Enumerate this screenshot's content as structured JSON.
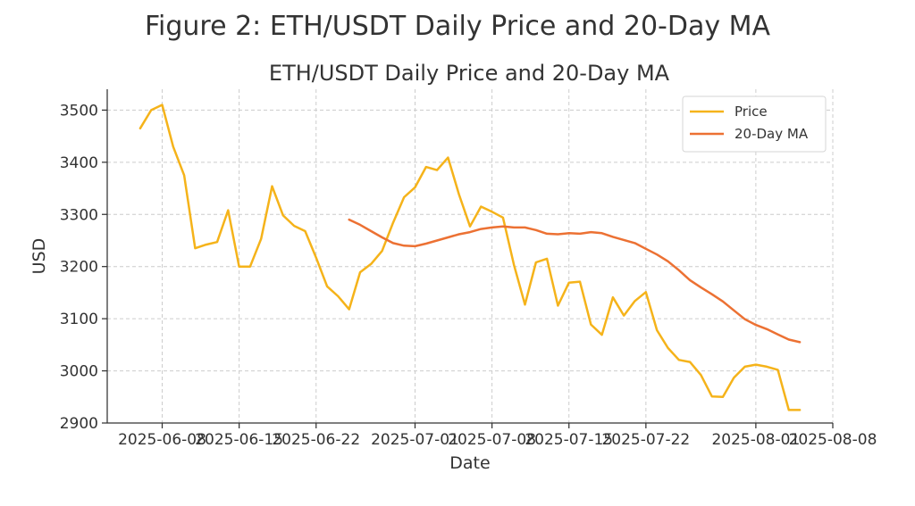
{
  "figure": {
    "suptitle": "Figure 2: ETH/USDT Daily Price and 20-Day MA"
  },
  "chart_data": {
    "type": "line",
    "title": "ETH/USDT Daily Price and 20-Day MA",
    "xlabel": "Date",
    "ylabel": "USD",
    "xlim": [
      "2025-06-03",
      "2025-08-08"
    ],
    "ylim": [
      2900,
      3540
    ],
    "grid": true,
    "legend_position": "top-right",
    "x_ticks": [
      "2025-06-08",
      "2025-06-15",
      "2025-06-22",
      "2025-07-01",
      "2025-07-08",
      "2025-07-15",
      "2025-07-22",
      "2025-08-01",
      "2025-08-08"
    ],
    "y_ticks": [
      2900,
      3000,
      3100,
      3200,
      3300,
      3400,
      3500
    ],
    "series": [
      {
        "name": "Price",
        "color": "#f5b31a",
        "x": [
          "2025-06-06",
          "2025-06-07",
          "2025-06-08",
          "2025-06-09",
          "2025-06-10",
          "2025-06-11",
          "2025-06-12",
          "2025-06-13",
          "2025-06-14",
          "2025-06-15",
          "2025-06-16",
          "2025-06-17",
          "2025-06-18",
          "2025-06-19",
          "2025-06-20",
          "2025-06-21",
          "2025-06-22",
          "2025-06-23",
          "2025-06-24",
          "2025-06-25",
          "2025-06-26",
          "2025-06-27",
          "2025-06-28",
          "2025-06-29",
          "2025-06-30",
          "2025-07-01",
          "2025-07-02",
          "2025-07-03",
          "2025-07-04",
          "2025-07-05",
          "2025-07-06",
          "2025-07-07",
          "2025-07-08",
          "2025-07-09",
          "2025-07-10",
          "2025-07-11",
          "2025-07-12",
          "2025-07-13",
          "2025-07-14",
          "2025-07-15",
          "2025-07-16",
          "2025-07-17",
          "2025-07-18",
          "2025-07-19",
          "2025-07-20",
          "2025-07-21",
          "2025-07-22",
          "2025-07-23",
          "2025-07-24",
          "2025-07-25",
          "2025-07-26",
          "2025-07-27",
          "2025-07-28",
          "2025-07-29",
          "2025-07-30",
          "2025-07-31",
          "2025-08-01",
          "2025-08-02",
          "2025-08-03",
          "2025-08-04",
          "2025-08-05"
        ],
        "values": [
          3465,
          3500,
          3510,
          3430,
          3375,
          3235,
          3242,
          3247,
          3308,
          3200,
          3200,
          3253,
          3354,
          3298,
          3278,
          3268,
          3217,
          3162,
          3143,
          3118,
          3189,
          3205,
          3230,
          3284,
          3333,
          3352,
          3391,
          3385,
          3409,
          3338,
          3277,
          3315,
          3305,
          3294,
          3203,
          3127,
          3208,
          3215,
          3125,
          3169,
          3171,
          3089,
          3069,
          3141,
          3106,
          3134,
          3151,
          3078,
          3044,
          3021,
          3017,
          2992,
          2951,
          2950,
          2987,
          3008,
          3012,
          3008,
          3002,
          2925,
          2925
        ]
      },
      {
        "name": "20-Day MA",
        "color": "#ec7133",
        "x": [
          "2025-06-25",
          "2025-06-26",
          "2025-06-27",
          "2025-06-28",
          "2025-06-29",
          "2025-06-30",
          "2025-07-01",
          "2025-07-02",
          "2025-07-03",
          "2025-07-04",
          "2025-07-05",
          "2025-07-06",
          "2025-07-07",
          "2025-07-08",
          "2025-07-09",
          "2025-07-10",
          "2025-07-11",
          "2025-07-12",
          "2025-07-13",
          "2025-07-14",
          "2025-07-15",
          "2025-07-16",
          "2025-07-17",
          "2025-07-18",
          "2025-07-19",
          "2025-07-20",
          "2025-07-21",
          "2025-07-22",
          "2025-07-23",
          "2025-07-24",
          "2025-07-25",
          "2025-07-26",
          "2025-07-27",
          "2025-07-28",
          "2025-07-29",
          "2025-07-30",
          "2025-07-31",
          "2025-08-01",
          "2025-08-02",
          "2025-08-03",
          "2025-08-04",
          "2025-08-05"
        ],
        "values": [
          3290,
          3280,
          3268,
          3256,
          3245,
          3240,
          3239,
          3244,
          3250,
          3256,
          3262,
          3266,
          3272,
          3275,
          3277,
          3275,
          3275,
          3270,
          3263,
          3262,
          3264,
          3263,
          3266,
          3264,
          3257,
          3251,
          3245,
          3234,
          3223,
          3210,
          3193,
          3174,
          3160,
          3147,
          3133,
          3116,
          3099,
          3088,
          3080,
          3070,
          3060,
          3055
        ]
      }
    ]
  }
}
